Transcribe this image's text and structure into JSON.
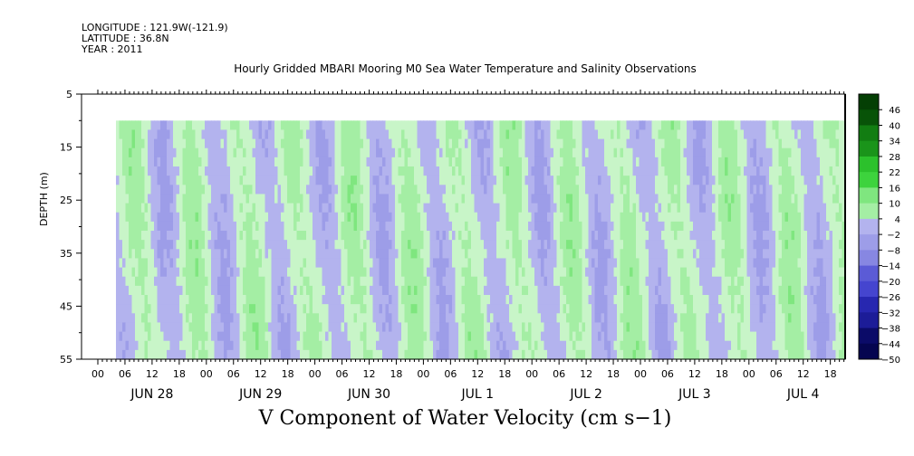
{
  "header": {
    "longitude": "LONGITUDE : 121.9W(-121.9)",
    "latitude": "LATITUDE : 36.8N",
    "year": "YEAR : 2011"
  },
  "chart_data": {
    "type": "heatmap",
    "title": "Hourly Gridded MBARI Mooring M0 Sea Water Temperature and Salinity Observations",
    "xlabel": "V Component of Water Velocity (cm s−1)",
    "ylabel": "DEPTH (m)",
    "y_ticks": [
      5,
      15,
      25,
      35,
      45,
      55
    ],
    "y_range": [
      5,
      55
    ],
    "data_depth_range": [
      10,
      55
    ],
    "x_hour_ticks": [
      "00",
      "06",
      "12",
      "18",
      "00",
      "06",
      "12",
      "18",
      "00",
      "06",
      "12",
      "18",
      "00",
      "06",
      "12",
      "18",
      "00",
      "06",
      "12",
      "18",
      "00",
      "06",
      "12",
      "18",
      "00",
      "06",
      "12",
      "18"
    ],
    "x_day_labels": [
      "JUN 28",
      "JUN 29",
      "JUN 30",
      "JUL  1",
      "JUL  2",
      "JUL  3",
      "JUL  4"
    ],
    "colorbar_labels": [
      "46",
      "40",
      "34",
      "28",
      "22",
      "16",
      "10",
      "4",
      "−2",
      "−8",
      "−14",
      "−20",
      "−26",
      "−32",
      "−38",
      "−44",
      "−50"
    ],
    "colorbar_range": [
      -50,
      52
    ],
    "color_scale": {
      "positive": [
        "#c8f5c8",
        "#a4eea4",
        "#7fe67f",
        "#5cde5c",
        "#3dd33d",
        "#2cc12c",
        "#22aa22",
        "#1a941a",
        "#127d12",
        "#0d670d",
        "#085308",
        "#043f04"
      ],
      "negative": [
        "#b3b3ee",
        "#9d9de8",
        "#8787e2",
        "#7171dc",
        "#5b5bd6",
        "#4545cf",
        "#3333c4",
        "#2727b0",
        "#1c1c98",
        "#131380",
        "#0b0b68",
        "#050550"
      ]
    },
    "description_pattern": "Alternating light-green (weak northward) and lavender (weak southward) bands; brighter green vertical streaks near hourly periodic peaks"
  }
}
